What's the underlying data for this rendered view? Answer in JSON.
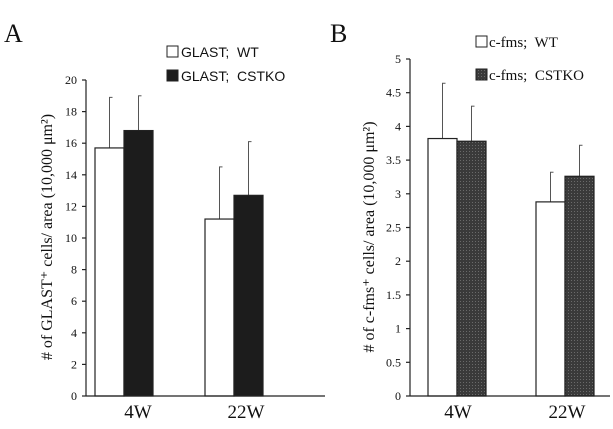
{
  "colors": {
    "wt": "#ffffff",
    "cstko_A": "#1c1c1c",
    "cstko_B": "#3a3a3a",
    "axis": "#222222"
  },
  "chart_data": [
    {
      "panel_label": "A",
      "type": "bar",
      "categories": [
        "4W",
        "22W"
      ],
      "ylabel": "# of GLAST⁺ cells/ area (10,000 μm²)",
      "ylim": [
        0,
        20
      ],
      "yticks": [
        0,
        2,
        4,
        6,
        8,
        10,
        12,
        14,
        16,
        18,
        20
      ],
      "legend_placement": "top-right",
      "series": [
        {
          "name": "GLAST;  WT",
          "values": [
            15.7,
            11.2
          ],
          "errors": [
            3.2,
            3.3
          ],
          "fill": "white"
        },
        {
          "name": "GLAST;  CSTKO",
          "values": [
            16.8,
            12.7
          ],
          "errors": [
            2.2,
            3.4
          ],
          "fill": "black"
        }
      ]
    },
    {
      "panel_label": "B",
      "type": "bar",
      "categories": [
        "4W",
        "22W"
      ],
      "ylabel": "# of c-fms⁺ cells/ area (10,000 μm²)",
      "ylim": [
        0,
        5
      ],
      "yticks": [
        "0",
        "0.5",
        "1",
        "1.5",
        "2",
        "2.5",
        "3",
        "3.5",
        "4",
        "4.5",
        "5"
      ],
      "legend_placement": "top-right",
      "series": [
        {
          "name": "c-fms;  WT",
          "values": [
            3.82,
            2.88
          ],
          "errors": [
            0.82,
            0.44
          ],
          "fill": "white"
        },
        {
          "name": "c-fms;  CSTKO",
          "values": [
            3.78,
            3.26
          ],
          "errors": [
            0.52,
            0.46
          ],
          "fill": "dark"
        }
      ]
    }
  ]
}
